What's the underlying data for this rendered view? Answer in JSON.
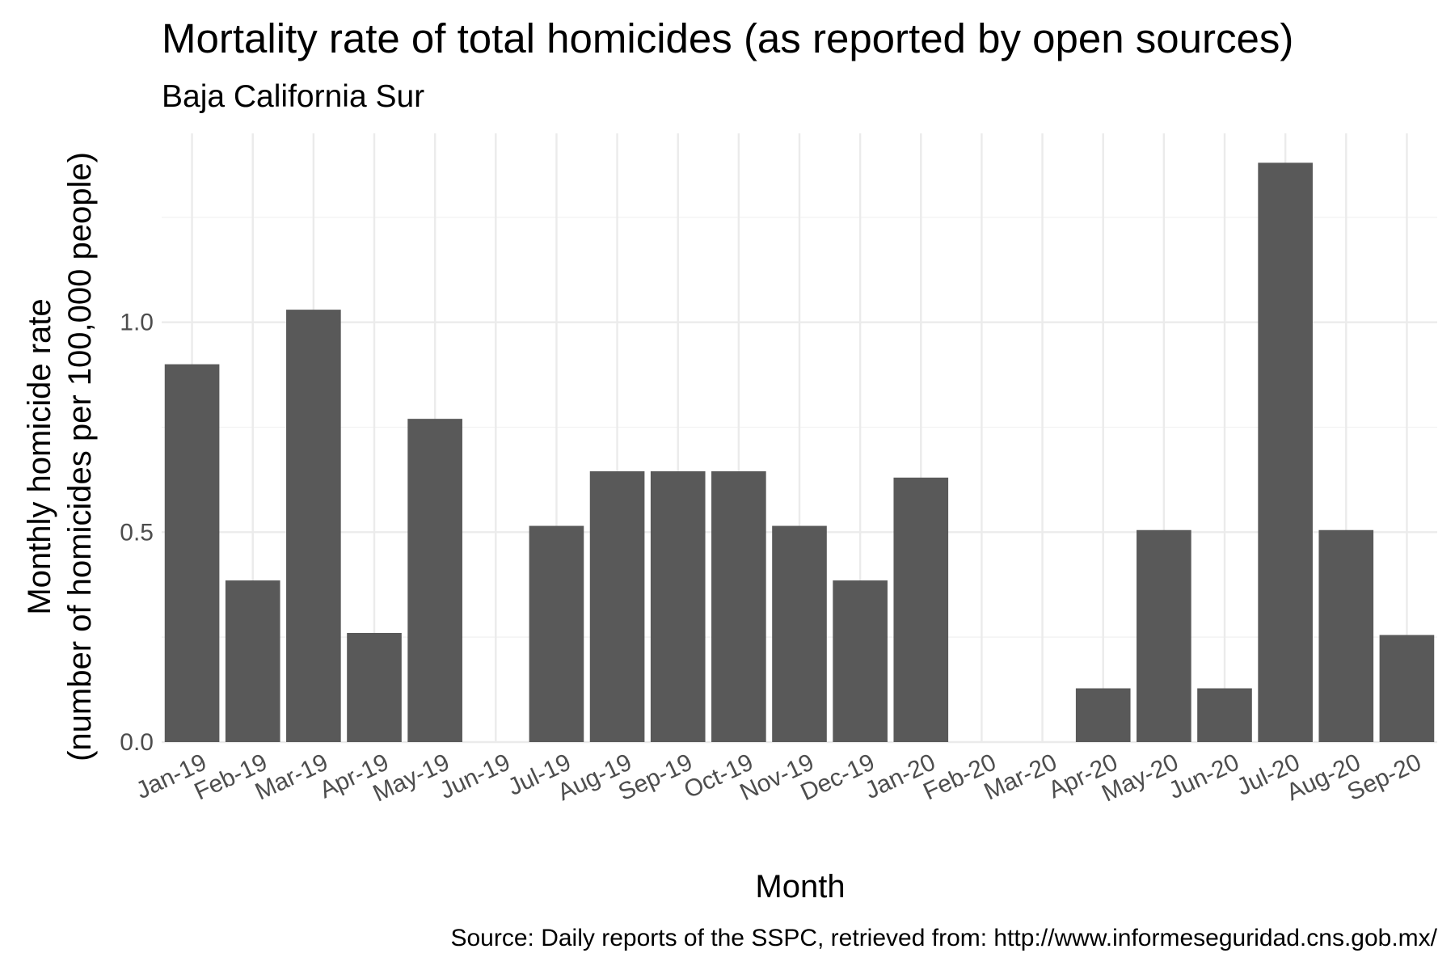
{
  "chart_data": {
    "type": "bar",
    "title": "Mortality rate of total homicides (as reported by open sources)",
    "subtitle": "Baja California Sur",
    "xlabel": "Month",
    "ylabel_lines": [
      "Monthly homicide rate",
      "(number of homicides per 100,000 people)"
    ],
    "caption": "Source: Daily reports of the SSPC, retrieved from: http://www.informeseguridad.cns.gob.mx/",
    "categories": [
      "Jan-19",
      "Feb-19",
      "Mar-19",
      "Apr-19",
      "May-19",
      "Jun-19",
      "Jul-19",
      "Aug-19",
      "Sep-19",
      "Oct-19",
      "Nov-19",
      "Dec-19",
      "Jan-20",
      "Feb-20",
      "Mar-20",
      "Apr-20",
      "May-20",
      "Jun-20",
      "Jul-20",
      "Aug-20",
      "Sep-20"
    ],
    "values": [
      0.9,
      0.385,
      1.03,
      0.26,
      0.77,
      0,
      0.515,
      0.645,
      0.645,
      0.645,
      0.515,
      0.385,
      0.63,
      0,
      0,
      0.128,
      0.505,
      0.128,
      1.38,
      0.505,
      0.255
    ],
    "y_ticks": [
      0.0,
      0.5,
      1.0
    ],
    "y_tick_labels": [
      "0.0",
      "0.5",
      "1.0"
    ],
    "ylim": [
      0,
      1.45
    ],
    "grid": true,
    "bar_color": "#595959",
    "legend": "none"
  }
}
